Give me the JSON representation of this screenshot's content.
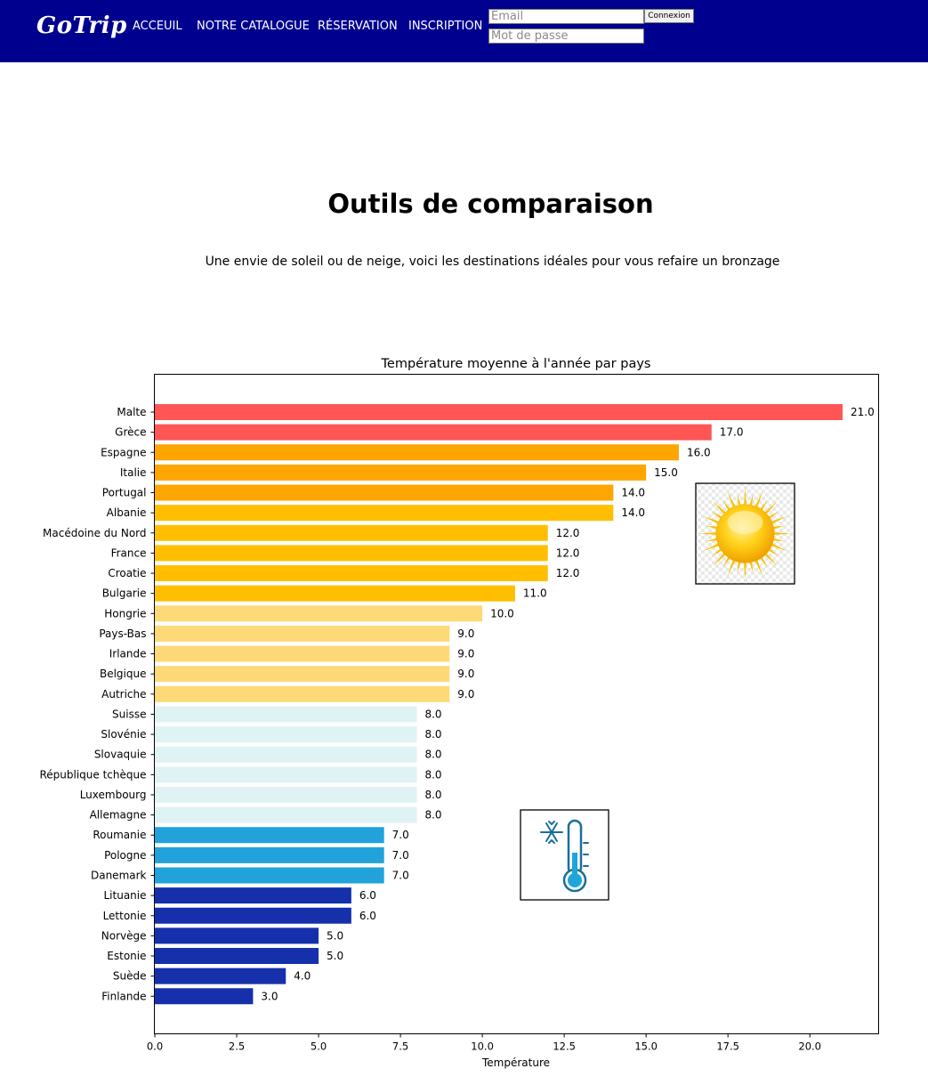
{
  "header": {
    "logo": "GoTrip",
    "nav": [
      "ACCEUIL",
      "NOTRE CATALOGUE",
      "RÉSERVATION",
      "INSCRIPTION"
    ],
    "login": {
      "email_placeholder": "Email",
      "password_placeholder": "Mot de passe",
      "button_label": "Connexion"
    },
    "background_color": "#00008f"
  },
  "main": {
    "title": "Outils de comparaison",
    "subtitle": "Une envie de soleil ou de neige, voici les destinations idéales pour vous refaire un bronzage"
  },
  "chart_data": {
    "type": "bar",
    "orientation": "horizontal",
    "title": "Température moyenne à l'année par pays",
    "xlabel": "Température",
    "ylabel": "",
    "xlim": [
      0,
      22.1
    ],
    "xticks": [
      "0.0",
      "2.5",
      "5.0",
      "7.5",
      "10.0",
      "12.5",
      "15.0",
      "17.5",
      "20.0"
    ],
    "grid": false,
    "categories": [
      "Malte",
      "Grèce",
      "Espagne",
      "Italie",
      "Portugal",
      "Albanie",
      "Macédoine du Nord",
      "France",
      "Croatie",
      "Bulgarie",
      "Hongrie",
      "Pays-Bas",
      "Irlande",
      "Belgique",
      "Autriche",
      "Suisse",
      "Slovénie",
      "Slovaquie",
      "République tchèque",
      "Luxembourg",
      "Allemagne",
      "Roumanie",
      "Pologne",
      "Danemark",
      "Lituanie",
      "Lettonie",
      "Norvège",
      "Estonie",
      "Suède",
      "Finlande"
    ],
    "values": [
      21.0,
      17.0,
      16.0,
      15.0,
      14.0,
      14.0,
      12.0,
      12.0,
      12.0,
      11.0,
      10.0,
      9.0,
      9.0,
      9.0,
      9.0,
      8.0,
      8.0,
      8.0,
      8.0,
      8.0,
      8.0,
      7.0,
      7.0,
      7.0,
      6.0,
      6.0,
      5.0,
      5.0,
      4.0,
      3.0
    ],
    "data_labels": [
      "21.0",
      "17.0",
      "16.0",
      "15.0",
      "14.0",
      "14.0",
      "12.0",
      "12.0",
      "12.0",
      "11.0",
      "10.0",
      "9.0",
      "9.0",
      "9.0",
      "9.0",
      "8.0",
      "8.0",
      "8.0",
      "8.0",
      "8.0",
      "8.0",
      "7.0",
      "7.0",
      "7.0",
      "6.0",
      "6.0",
      "5.0",
      "5.0",
      "4.0",
      "3.0"
    ],
    "colors": [
      "#ff5555",
      "#ff5555",
      "#ffa500",
      "#ffa500",
      "#ffa500",
      "#ffbf00",
      "#ffbf00",
      "#ffbf00",
      "#ffbf00",
      "#ffbf00",
      "#fdd977",
      "#fdd977",
      "#fdd977",
      "#fdd977",
      "#fdd977",
      "#dff3f4",
      "#dff3f4",
      "#dff3f4",
      "#dff3f4",
      "#dff3f4",
      "#dff3f4",
      "#21a2da",
      "#21a2da",
      "#21a2da",
      "#1530aa",
      "#1530aa",
      "#1530aa",
      "#1530aa",
      "#1530aa",
      "#1530aa"
    ],
    "icons": [
      "sun-icon",
      "snowflake-thermometer-icon"
    ]
  }
}
